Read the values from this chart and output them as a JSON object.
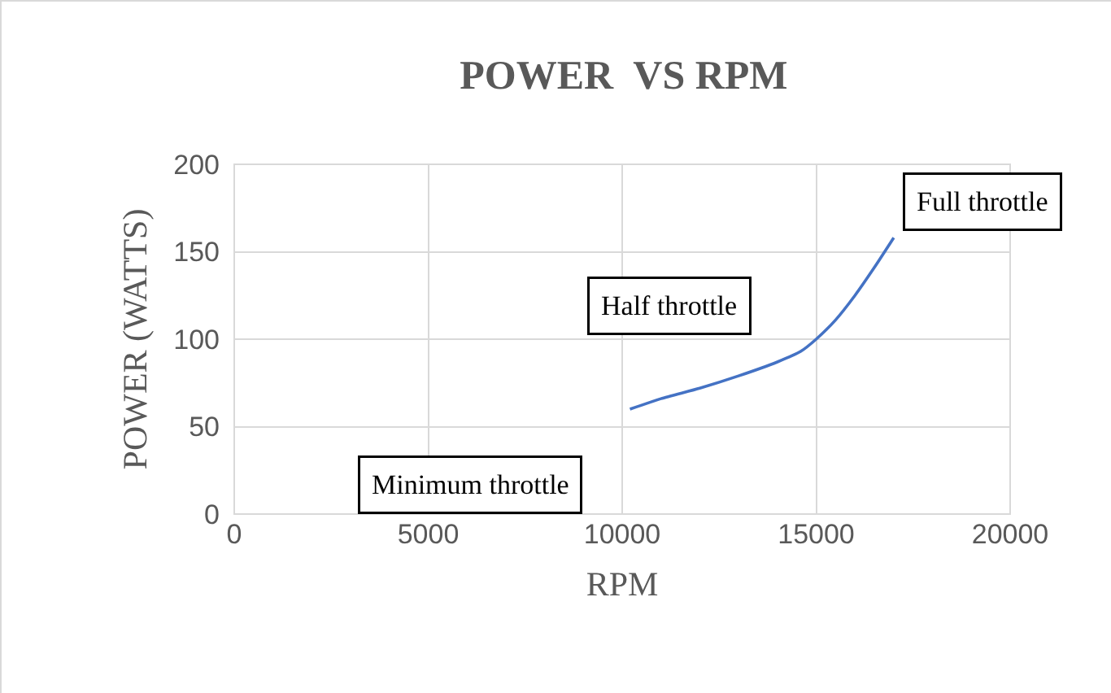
{
  "chart_data": {
    "type": "line",
    "title": "POWER  VS RPM",
    "xlabel": "RPM",
    "ylabel": "POWER (WATTS)",
    "x": [
      10200,
      11000,
      12000,
      13000,
      14000,
      14600,
      15000,
      15500,
      16000,
      16500,
      17000
    ],
    "series": [
      {
        "color": "#4472c4",
        "values": [
          60,
          66,
          72,
          79,
          87,
          93,
          100,
          111,
          125,
          141,
          158
        ]
      }
    ],
    "xlim": [
      0,
      20000
    ],
    "xticks": [
      0,
      5000,
      10000,
      15000,
      20000
    ],
    "ylim": [
      0,
      200
    ],
    "yticks": [
      0,
      50,
      100,
      150,
      200
    ],
    "grid": true,
    "marker": "none",
    "line_style": "solid",
    "annotations": [
      "Minimum throttle",
      "Half throttle",
      "Full throttle"
    ]
  }
}
